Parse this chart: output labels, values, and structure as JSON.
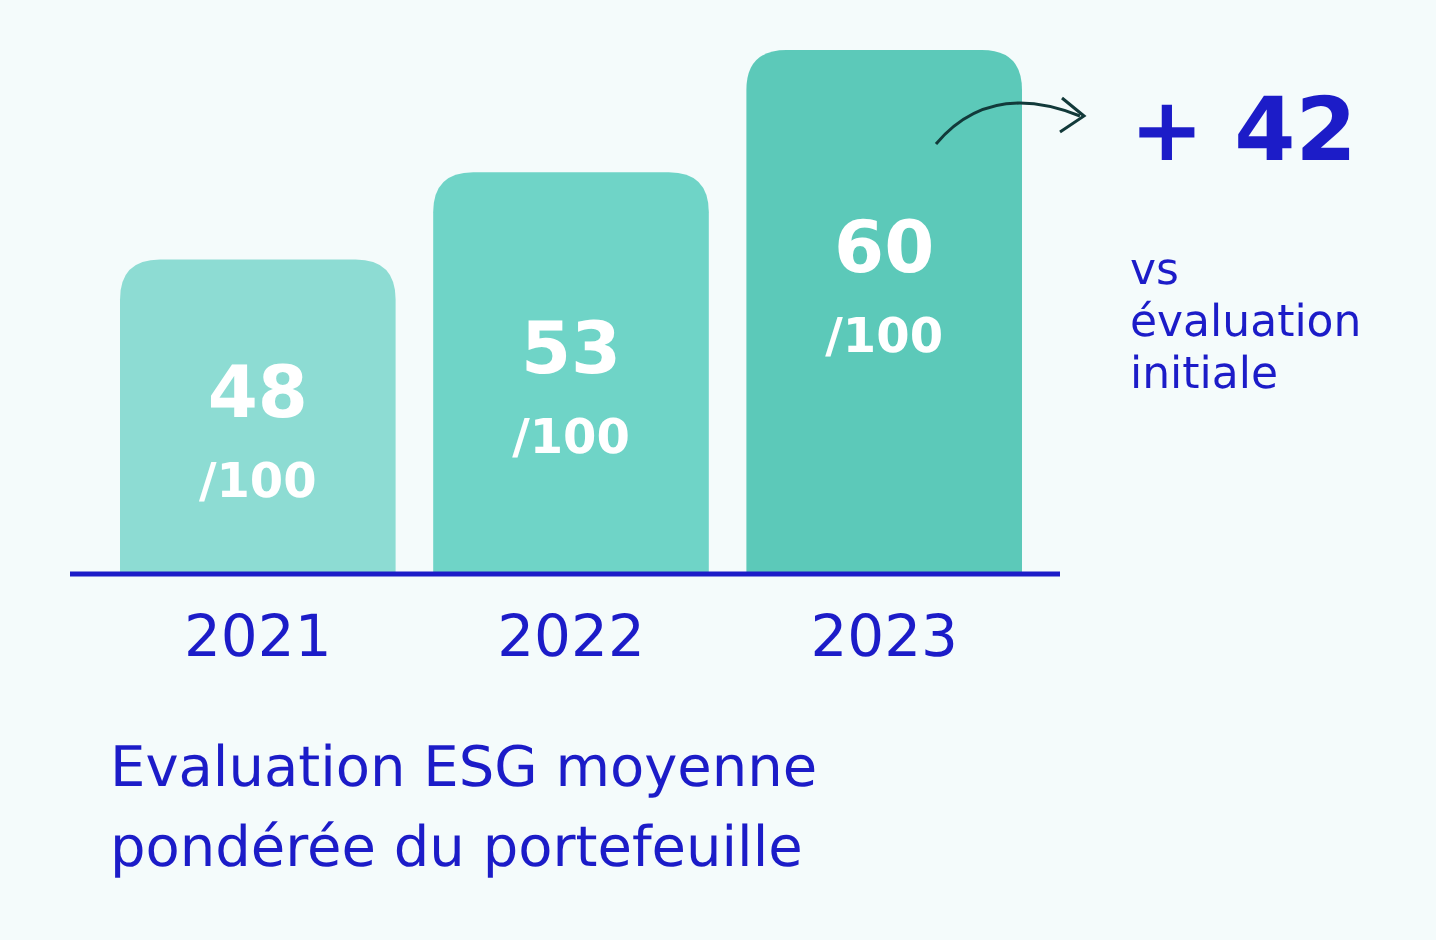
{
  "chart_data": {
    "type": "bar",
    "ylim": [
      30,
      60
    ],
    "title": "Evaluation ESG moyenne pondérée du portefeuille",
    "categories": [
      "2021",
      "2022",
      "2023"
    ],
    "values": [
      48,
      53,
      60
    ],
    "colors": [
      "#8ddcd3",
      "#6fd4c7",
      "#5cc9b9"
    ],
    "value_labels": [
      "48 /100",
      "53 /100",
      "60 /100"
    ],
    "annotations": [
      "+ 42",
      "vs évaluation initiale"
    ]
  }
}
